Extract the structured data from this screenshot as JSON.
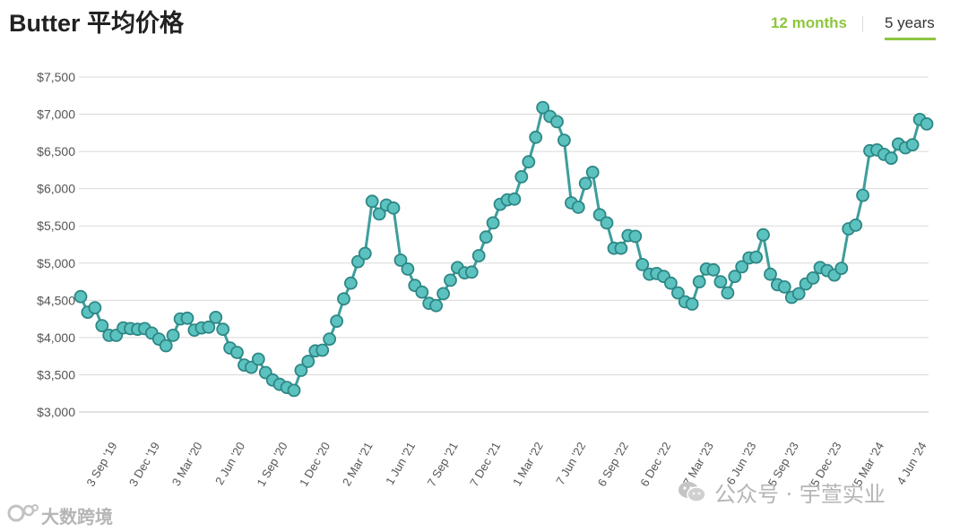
{
  "header": {
    "title": "Butter 平均价格",
    "tabs": [
      {
        "label": "12 months",
        "active": false
      },
      {
        "label": "5 years",
        "active": true
      }
    ]
  },
  "colors": {
    "line": "#3d9e9c",
    "marker_fill": "#5cc2bf",
    "marker_stroke": "#2d8785",
    "grid": "#d9d9d9",
    "tab_active_underline": "#8dc63f",
    "tab_12_months": "#8dc63f"
  },
  "watermarks": {
    "right": "公众号 · 宇萱实业",
    "left": "大数跨境"
  },
  "chart_data": {
    "type": "line",
    "ylim": [
      3000,
      7500
    ],
    "y_ticks": [
      "$3,000",
      "$3,500",
      "$4,000",
      "$4,500",
      "$5,000",
      "$5,500",
      "$6,000",
      "$6,500",
      "$7,000",
      "$7,500"
    ],
    "x_tick_labels": [
      "3 Sep '19",
      "3 Dec '19",
      "3 Mar '20",
      "2 Jun '20",
      "1 Sep '20",
      "1 Dec '20",
      "2 Mar '21",
      "1 Jun '21",
      "7 Sep '21",
      "7 Dec '21",
      "1 Mar '22",
      "7 Jun '22",
      "6 Sep '22",
      "6 Dec '22",
      "7 Mar '23",
      "6 Jun '23",
      "5 Sep '23",
      "5 Dec '23",
      "5 Mar '24",
      "4 Jun '24"
    ],
    "grid": true,
    "values": [
      4550,
      4340,
      4400,
      4160,
      4030,
      4030,
      4130,
      4120,
      4110,
      4120,
      4060,
      3980,
      3890,
      4030,
      4250,
      4260,
      4100,
      4130,
      4140,
      4270,
      4110,
      3860,
      3800,
      3630,
      3600,
      3710,
      3530,
      3430,
      3370,
      3330,
      3290,
      3560,
      3680,
      3820,
      3830,
      3980,
      4220,
      4520,
      4730,
      5020,
      5130,
      5830,
      5660,
      5780,
      5740,
      5040,
      4920,
      4700,
      4610,
      4460,
      4430,
      4590,
      4770,
      4940,
      4870,
      4880,
      5100,
      5350,
      5540,
      5790,
      5850,
      5860,
      6160,
      6360,
      6690,
      7090,
      6970,
      6900,
      6650,
      5810,
      5750,
      6070,
      6220,
      5650,
      5540,
      5200,
      5200,
      5370,
      5360,
      4980,
      4850,
      4860,
      4820,
      4730,
      4600,
      4480,
      4450,
      4750,
      4920,
      4910,
      4750,
      4600,
      4820,
      4950,
      5070,
      5080,
      5380,
      4850,
      4710,
      4680,
      4540,
      4590,
      4720,
      4800,
      4940,
      4900,
      4840,
      4930,
      5460,
      5510,
      5910,
      6510,
      6520,
      6460,
      6410,
      6600,
      6550,
      6590,
      6930,
      6870
    ]
  }
}
